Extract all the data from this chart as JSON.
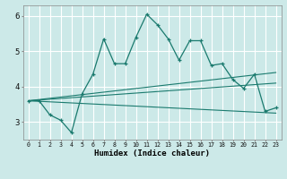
{
  "xlabel": "Humidex (Indice chaleur)",
  "background_color": "#cce9e8",
  "grid_color": "#ffffff",
  "line_color": "#1a7a6e",
  "xlim": [
    -0.5,
    23.5
  ],
  "ylim": [
    2.5,
    6.3
  ],
  "xticks": [
    0,
    1,
    2,
    3,
    4,
    5,
    6,
    7,
    8,
    9,
    10,
    11,
    12,
    13,
    14,
    15,
    16,
    17,
    18,
    19,
    20,
    21,
    22,
    23
  ],
  "yticks": [
    3,
    4,
    5,
    6
  ],
  "series1_x": [
    0,
    1,
    2,
    3,
    4,
    5,
    6,
    7,
    8,
    9,
    10,
    11,
    12,
    13,
    14,
    15,
    16,
    17,
    18,
    19,
    20,
    21,
    22,
    23
  ],
  "series1_y": [
    3.6,
    3.6,
    3.2,
    3.05,
    2.7,
    3.8,
    4.35,
    5.35,
    4.65,
    4.65,
    5.4,
    6.05,
    5.75,
    5.35,
    4.75,
    5.3,
    5.3,
    4.6,
    4.65,
    4.2,
    3.95,
    4.35,
    3.3,
    3.4
  ],
  "trend1_x": [
    0,
    23
  ],
  "trend1_y": [
    3.6,
    3.25
  ],
  "trend2_x": [
    0,
    23
  ],
  "trend2_y": [
    3.6,
    4.4
  ],
  "trend3_x": [
    0,
    23
  ],
  "trend3_y": [
    3.6,
    4.1
  ]
}
